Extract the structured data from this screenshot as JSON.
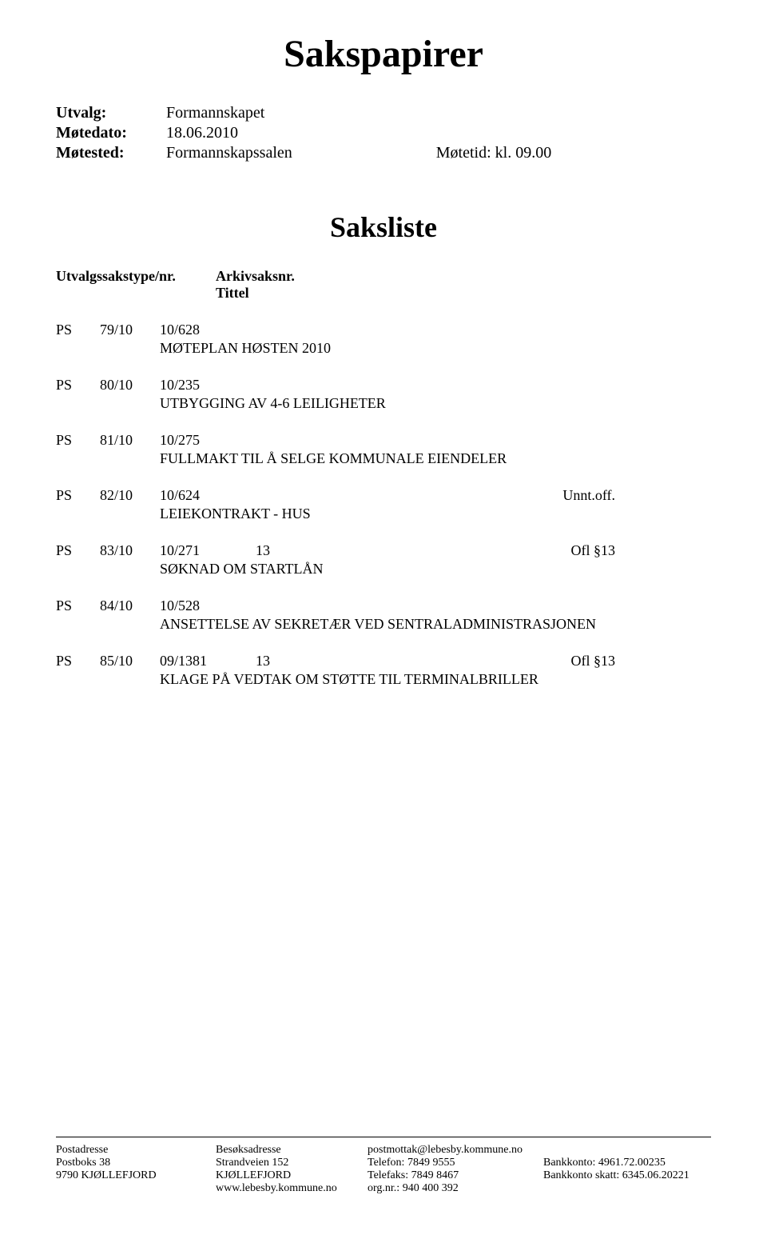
{
  "document": {
    "main_title": "Sakspapirer",
    "meta": {
      "utvalg_label": "Utvalg:",
      "utvalg_value": "Formannskapet",
      "motedato_label": "Møtedato:",
      "motedato_value": "18.06.2010",
      "motested_label": "Møtested:",
      "motested_value": "Formannskapssalen",
      "motetid_label": "Møtetid: kl. 09.00"
    },
    "saksliste_title": "Saksliste",
    "header": {
      "type_label": "Utvalgssakstype/nr.",
      "arkiv_label": "Arkivsaksnr.",
      "tittel_label": "Tittel"
    },
    "items": [
      {
        "ps": "PS",
        "num": "79/10",
        "code": "10/628",
        "extra": "",
        "right": "",
        "title": "MØTEPLAN HØSTEN 2010"
      },
      {
        "ps": "PS",
        "num": "80/10",
        "code": "10/235",
        "extra": "",
        "right": "",
        "title": "UTBYGGING AV 4-6 LEILIGHETER"
      },
      {
        "ps": "PS",
        "num": "81/10",
        "code": "10/275",
        "extra": "",
        "right": "",
        "title": "FULLMAKT TIL Å SELGE KOMMUNALE EIENDELER"
      },
      {
        "ps": "PS",
        "num": "82/10",
        "code": "10/624",
        "extra": "",
        "right": "Unnt.off.",
        "title": "LEIEKONTRAKT - HUS"
      },
      {
        "ps": "PS",
        "num": "83/10",
        "code": "10/271",
        "extra": "13",
        "right": "Ofl §13",
        "title": "SØKNAD OM STARTLÅN"
      },
      {
        "ps": "PS",
        "num": "84/10",
        "code": "10/528",
        "extra": "",
        "right": "",
        "title": "ANSETTELSE AV SEKRETÆR VED SENTRALADMINISTRASJONEN"
      },
      {
        "ps": "PS",
        "num": "85/10",
        "code": "09/1381",
        "extra": "13",
        "right": "Ofl §13",
        "title": "KLAGE PÅ VEDTAK OM  STØTTE TIL TERMINALBRILLER"
      }
    ],
    "footer": {
      "row0": {
        "col1": "Postadresse",
        "col2": "Besøksadresse",
        "col3": "postmottak@lebesby.kommune.no",
        "col4": ""
      },
      "row1": {
        "col1": "Postboks 38",
        "col2": "Strandveien 152",
        "col3": "Telefon:    7849 9555",
        "col4": "Bankkonto:         4961.72.00235"
      },
      "row2": {
        "col1": "9790 KJØLLEFJORD",
        "col2": "KJØLLEFJORD",
        "col3": "Telefaks:   7849 8467",
        "col4": "Bankkonto skatt: 6345.06.20221"
      },
      "row3": {
        "col1": "",
        "col2": "www.lebesby.kommune.no",
        "col3": "org.nr.: 940 400 392",
        "col4": ""
      }
    }
  }
}
